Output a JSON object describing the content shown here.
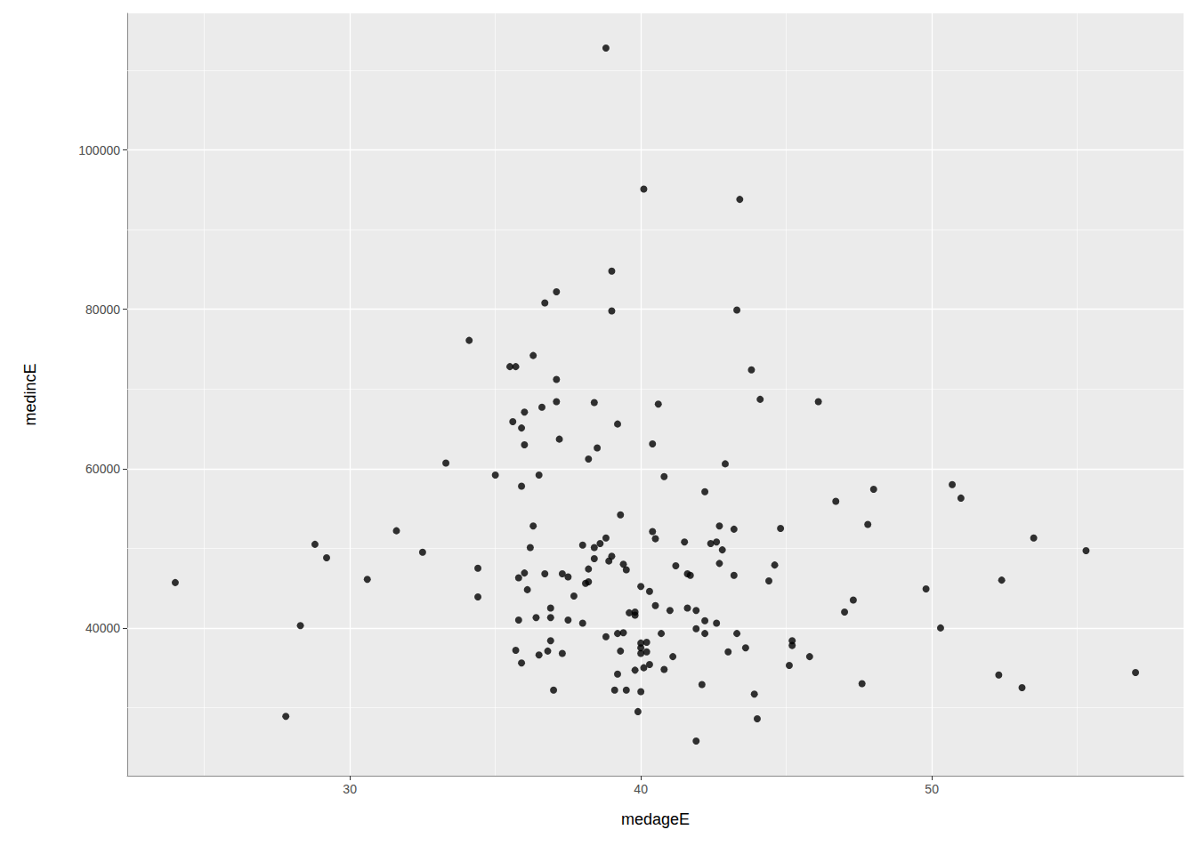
{
  "chart_data": {
    "type": "scatter",
    "xlabel": "medageE",
    "ylabel": "medincE",
    "color": "#000000",
    "grid": true,
    "xlim": [
      22.35,
      58.65
    ],
    "xticks": [
      30,
      40,
      50
    ],
    "ylim": [
      21450,
      117150
    ],
    "yticks": [
      40000,
      60000,
      80000,
      100000
    ],
    "x": [
      24.0,
      27.8,
      28.3,
      28.8,
      29.2,
      30.6,
      31.6,
      32.5,
      33.3,
      34.1,
      34.4,
      34.4,
      35.0,
      35.5,
      35.7,
      35.6,
      35.9,
      36.0,
      36.0,
      35.9,
      36.3,
      36.5,
      36.6,
      36.7,
      37.1,
      37.1,
      37.1,
      37.2,
      36.3,
      36.2,
      36.0,
      35.8,
      36.1,
      35.8,
      36.4,
      35.7,
      35.9,
      36.5,
      36.7,
      36.8,
      36.9,
      36.9,
      36.9,
      37.0,
      37.3,
      37.3,
      37.5,
      37.5,
      37.7,
      38.0,
      38.0,
      38.1,
      38.2,
      38.2,
      38.2,
      38.4,
      38.4,
      38.4,
      38.5,
      38.6,
      38.8,
      38.8,
      38.8,
      39.0,
      39.0,
      38.9,
      39.0,
      39.2,
      39.2,
      39.2,
      39.1,
      39.3,
      39.3,
      39.4,
      39.4,
      39.5,
      39.5,
      39.6,
      39.8,
      39.8,
      39.8,
      39.9,
      40.0,
      40.0,
      40.0,
      40.0,
      40.0,
      40.1,
      40.1,
      40.2,
      40.2,
      40.3,
      40.3,
      40.4,
      40.4,
      40.5,
      40.5,
      40.6,
      40.7,
      40.8,
      40.8,
      41.0,
      41.1,
      41.2,
      41.5,
      41.6,
      41.6,
      41.7,
      41.9,
      41.9,
      41.9,
      42.1,
      42.2,
      42.2,
      42.2,
      42.4,
      42.6,
      42.6,
      42.7,
      42.7,
      42.8,
      42.9,
      43.0,
      43.2,
      43.2,
      43.3,
      43.3,
      43.4,
      43.6,
      43.8,
      43.9,
      44.0,
      44.1,
      44.4,
      44.6,
      44.8,
      45.1,
      45.2,
      45.2,
      45.8,
      46.1,
      46.7,
      47.0,
      47.3,
      47.6,
      47.8,
      48.0,
      49.8,
      50.3,
      50.7,
      51.0,
      52.3,
      52.4,
      53.1,
      53.5,
      55.3,
      57.0
    ],
    "values": [
      45700,
      28900,
      40300,
      50500,
      48800,
      46100,
      52200,
      49500,
      60700,
      76100,
      47500,
      43900,
      59200,
      72800,
      72800,
      65900,
      65100,
      67100,
      63000,
      57800,
      74200,
      59200,
      67700,
      80800,
      82200,
      71200,
      68400,
      63700,
      52800,
      50100,
      46900,
      46300,
      44800,
      41000,
      41300,
      37200,
      35600,
      36600,
      46800,
      37100,
      42500,
      41300,
      38400,
      32200,
      36800,
      46800,
      46400,
      41000,
      44000,
      40600,
      50400,
      45600,
      45800,
      47400,
      61200,
      50100,
      48700,
      68300,
      62600,
      50600,
      51300,
      38900,
      112800,
      84800,
      79800,
      48400,
      49000,
      65600,
      39300,
      34200,
      32200,
      54200,
      37100,
      39400,
      48000,
      47300,
      32200,
      41900,
      41600,
      34700,
      42000,
      29500,
      37500,
      45200,
      38100,
      36800,
      32000,
      95100,
      35000,
      38200,
      37000,
      44600,
      35400,
      63100,
      52100,
      51200,
      42800,
      68100,
      39300,
      59000,
      34800,
      42200,
      36400,
      47800,
      50800,
      42500,
      46800,
      46600,
      25800,
      42200,
      39900,
      32900,
      40900,
      57100,
      39300,
      50600,
      50800,
      40600,
      52800,
      48100,
      49800,
      60600,
      37000,
      52400,
      46600,
      39300,
      79900,
      93800,
      37500,
      72400,
      31700,
      28600,
      68700,
      45900,
      47900,
      52500,
      35300,
      38400,
      37800,
      36400,
      68400,
      55900,
      42000,
      43500,
      33000,
      53000,
      57400,
      44900,
      40000,
      58000,
      56300,
      34100,
      46000,
      32500,
      51300,
      49700,
      34400
    ]
  }
}
